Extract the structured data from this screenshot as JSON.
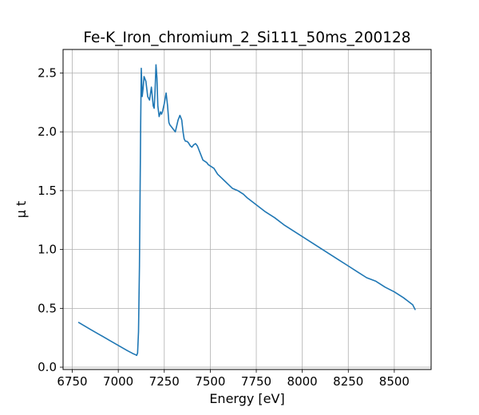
{
  "chart_data": {
    "type": "line",
    "title": "Fe-K_Iron_chromium_2_Si111_50ms_200128",
    "xlabel": "Energy [eV]",
    "ylabel": "μ t",
    "xlim": [
      6700,
      8700
    ],
    "ylim": [
      -0.02,
      2.7
    ],
    "xticks": [
      6750,
      7000,
      7250,
      7500,
      7750,
      8000,
      8250,
      8500
    ],
    "xtick_labels": [
      "6750",
      "7000",
      "7250",
      "7500",
      "7750",
      "8000",
      "8250",
      "8500"
    ],
    "yticks": [
      0.0,
      0.5,
      1.0,
      1.5,
      2.0,
      2.5
    ],
    "ytick_labels": [
      "0.0",
      "0.5",
      "1.0",
      "1.5",
      "2.0",
      "2.5"
    ],
    "grid": true,
    "legend": "none",
    "series": [
      {
        "color": "#1f77b4",
        "x": [
          6785,
          6850,
          6900,
          6950,
          7000,
          7050,
          7080,
          7095,
          7100,
          7105,
          7110,
          7115,
          7118,
          7122,
          7125,
          7130,
          7135,
          7140,
          7150,
          7160,
          7170,
          7180,
          7190,
          7195,
          7200,
          7205,
          7210,
          7215,
          7222,
          7230,
          7235,
          7240,
          7250,
          7260,
          7268,
          7275,
          7280,
          7290,
          7300,
          7310,
          7325,
          7335,
          7345,
          7352,
          7358,
          7365,
          7372,
          7380,
          7392,
          7400,
          7410,
          7420,
          7430,
          7440,
          7450,
          7460,
          7470,
          7480,
          7490,
          7500,
          7520,
          7540,
          7560,
          7580,
          7600,
          7620,
          7650,
          7680,
          7700,
          7750,
          7800,
          7850,
          7900,
          7950,
          8000,
          8050,
          8100,
          8150,
          8200,
          8250,
          8300,
          8350,
          8400,
          8450,
          8500,
          8550,
          8600,
          8613
        ],
        "y": [
          0.38,
          0.32,
          0.275,
          0.23,
          0.185,
          0.14,
          0.115,
          0.105,
          0.1,
          0.12,
          0.3,
          0.85,
          1.4,
          2.1,
          2.54,
          2.3,
          2.37,
          2.47,
          2.43,
          2.3,
          2.27,
          2.38,
          2.22,
          2.2,
          2.35,
          2.57,
          2.46,
          2.22,
          2.13,
          2.17,
          2.15,
          2.17,
          2.24,
          2.33,
          2.22,
          2.08,
          2.06,
          2.04,
          2.02,
          2.0,
          2.1,
          2.14,
          2.1,
          2.0,
          1.94,
          1.92,
          1.92,
          1.91,
          1.88,
          1.87,
          1.89,
          1.9,
          1.88,
          1.84,
          1.8,
          1.76,
          1.75,
          1.74,
          1.72,
          1.71,
          1.69,
          1.64,
          1.61,
          1.58,
          1.55,
          1.52,
          1.5,
          1.47,
          1.44,
          1.38,
          1.32,
          1.27,
          1.21,
          1.16,
          1.11,
          1.06,
          1.01,
          0.96,
          0.91,
          0.86,
          0.81,
          0.76,
          0.73,
          0.68,
          0.64,
          0.59,
          0.53,
          0.49
        ]
      }
    ]
  }
}
